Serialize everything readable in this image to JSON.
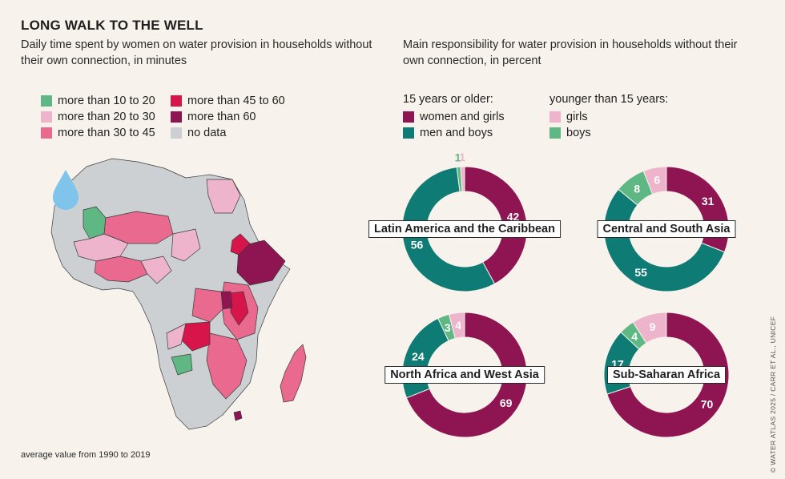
{
  "header": {
    "title": "LONG WALK TO THE WELL",
    "subtitle_left": "Daily time spent by women on water provision in households without their own connection, in minutes",
    "subtitle_right": "Main responsibility for water provision in households without their own connection, in percent"
  },
  "map_legend": {
    "items": [
      {
        "label": "more than 10 to 20",
        "color": "#5fb784"
      },
      {
        "label": "more than 20 to 30",
        "color": "#eeb4cc"
      },
      {
        "label": "more than 30 to 45",
        "color": "#e9698f"
      },
      {
        "label": "more than 45 to 60",
        "color": "#d8154a"
      },
      {
        "label": "more than 60",
        "color": "#8e1452"
      },
      {
        "label": "no data",
        "color": "#cdd0d3"
      }
    ]
  },
  "donut_legend": {
    "group_older": "15 years or older:",
    "group_younger": "younger than 15 years:",
    "items": [
      {
        "label": "women and girls",
        "color": "#8e1452"
      },
      {
        "label": "men and boys",
        "color": "#0e7c74"
      },
      {
        "label": "girls",
        "color": "#eeb4cc"
      },
      {
        "label": "boys",
        "color": "#5fb784"
      }
    ]
  },
  "footnote": "average value from 1990 to 2019",
  "credit": "© WATER ATLAS 2025 / CARR ET AL., UNICEF",
  "chart_data": [
    {
      "type": "pie",
      "title": "Latin America and the Caribbean",
      "labels": [
        "women and girls",
        "men and boys",
        "boys",
        "girls"
      ],
      "values": [
        42,
        56,
        1,
        1
      ],
      "colors": [
        "#8e1452",
        "#0e7c74",
        "#5fb784",
        "#eeb4cc"
      ]
    },
    {
      "type": "pie",
      "title": "Central and South Asia",
      "labels": [
        "women and girls",
        "men and boys",
        "boys",
        "girls"
      ],
      "values": [
        31,
        55,
        8,
        6
      ],
      "colors": [
        "#8e1452",
        "#0e7c74",
        "#5fb784",
        "#eeb4cc"
      ]
    },
    {
      "type": "pie",
      "title": "North Africa and West Asia",
      "labels": [
        "women and girls",
        "men and boys",
        "boys",
        "girls"
      ],
      "values": [
        69,
        24,
        3,
        4
      ],
      "colors": [
        "#8e1452",
        "#0e7c74",
        "#5fb784",
        "#eeb4cc"
      ]
    },
    {
      "type": "pie",
      "title": "Sub-Saharan Africa",
      "labels": [
        "women and girls",
        "men and boys",
        "boys",
        "girls"
      ],
      "values": [
        70,
        17,
        4,
        9
      ],
      "colors": [
        "#8e1452",
        "#0e7c74",
        "#5fb784",
        "#eeb4cc"
      ]
    }
  ]
}
